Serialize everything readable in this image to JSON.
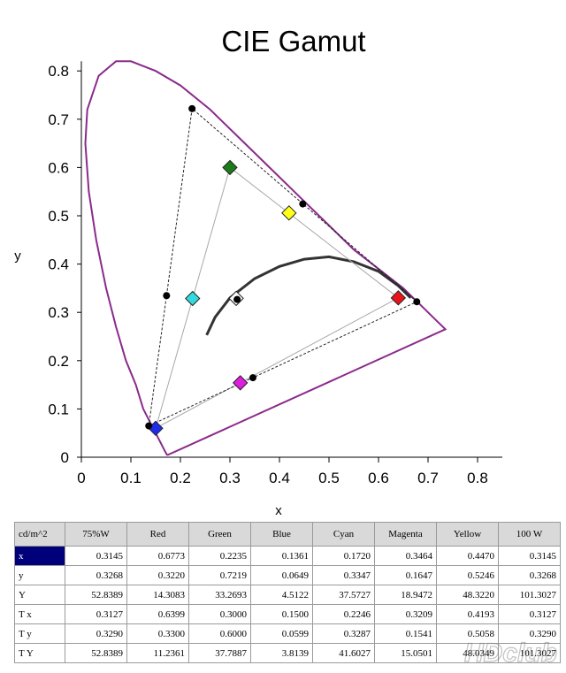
{
  "chart_data": {
    "type": "scatter",
    "title": "CIE Gamut",
    "xlabel": "x",
    "ylabel": "y",
    "xlim": [
      0,
      0.8
    ],
    "ylim": [
      0,
      0.8
    ],
    "x_ticks": [
      "0",
      "0.1",
      "0.2",
      "0.3",
      "0.4",
      "0.5",
      "0.6",
      "0.7",
      "0.8"
    ],
    "y_ticks": [
      "0",
      "0.1",
      "0.2",
      "0.3",
      "0.4",
      "0.5",
      "0.6",
      "0.7",
      "0.8"
    ],
    "grid": false,
    "spectral_locus": [
      [
        0.175,
        0.005
      ],
      [
        0.173,
        0.005
      ],
      [
        0.17,
        0.01
      ],
      [
        0.165,
        0.02
      ],
      [
        0.16,
        0.03
      ],
      [
        0.15,
        0.05
      ],
      [
        0.14,
        0.07
      ],
      [
        0.125,
        0.1
      ],
      [
        0.11,
        0.15
      ],
      [
        0.09,
        0.2
      ],
      [
        0.07,
        0.27
      ],
      [
        0.05,
        0.35
      ],
      [
        0.03,
        0.45
      ],
      [
        0.015,
        0.55
      ],
      [
        0.008,
        0.65
      ],
      [
        0.012,
        0.72
      ],
      [
        0.035,
        0.79
      ],
      [
        0.07,
        0.82
      ],
      [
        0.1,
        0.82
      ],
      [
        0.15,
        0.8
      ],
      [
        0.2,
        0.77
      ],
      [
        0.26,
        0.72
      ],
      [
        0.32,
        0.66
      ],
      [
        0.38,
        0.6
      ],
      [
        0.44,
        0.54
      ],
      [
        0.5,
        0.48
      ],
      [
        0.55,
        0.43
      ],
      [
        0.6,
        0.39
      ],
      [
        0.65,
        0.35
      ],
      [
        0.69,
        0.31
      ],
      [
        0.71,
        0.29
      ],
      [
        0.735,
        0.265
      ]
    ],
    "planckian_locus": [
      [
        0.253,
        0.253
      ],
      [
        0.27,
        0.29
      ],
      [
        0.3,
        0.33
      ],
      [
        0.35,
        0.37
      ],
      [
        0.4,
        0.395
      ],
      [
        0.45,
        0.41
      ],
      [
        0.5,
        0.415
      ],
      [
        0.55,
        0.405
      ],
      [
        0.6,
        0.385
      ],
      [
        0.64,
        0.355
      ],
      [
        0.665,
        0.33
      ]
    ],
    "target_gamut": [
      [
        0.64,
        0.33
      ],
      [
        0.3,
        0.6
      ],
      [
        0.15,
        0.06
      ]
    ],
    "measured_gamut": [
      [
        0.6773,
        0.322
      ],
      [
        0.2235,
        0.7219
      ],
      [
        0.1361,
        0.0649
      ]
    ],
    "measured_points": [
      {
        "x": 0.6773,
        "y": 0.322
      },
      {
        "x": 0.2235,
        "y": 0.7219
      },
      {
        "x": 0.1361,
        "y": 0.0649
      },
      {
        "x": 0.172,
        "y": 0.3347
      },
      {
        "x": 0.3464,
        "y": 0.1647
      },
      {
        "x": 0.447,
        "y": 0.5246
      },
      {
        "x": 0.3145,
        "y": 0.3268
      }
    ],
    "target_points": [
      {
        "x": 0.6399,
        "y": 0.33,
        "color": "#e8141c"
      },
      {
        "x": 0.3,
        "y": 0.6,
        "color": "#1a7d1a"
      },
      {
        "x": 0.15,
        "y": 0.0599,
        "color": "#1f2be8"
      },
      {
        "x": 0.2246,
        "y": 0.3287,
        "color": "#33dcdc"
      },
      {
        "x": 0.3209,
        "y": 0.1541,
        "color": "#e01ee0"
      },
      {
        "x": 0.4193,
        "y": 0.5058,
        "color": "#ffff1a"
      },
      {
        "x": 0.3127,
        "y": 0.329,
        "color": "#ffffff"
      }
    ],
    "colors": {
      "locus": "#8b2a8b",
      "planckian": "#333333",
      "measured_line": "#222222",
      "target_line": "#a8a8a8"
    }
  },
  "table": {
    "corner": "cd/m^2",
    "columns": [
      "75%W",
      "Red",
      "Green",
      "Blue",
      "Cyan",
      "Magenta",
      "Yellow",
      "100 W"
    ],
    "rows": [
      {
        "label": "x",
        "values": [
          "0.3145",
          "0.6773",
          "0.2235",
          "0.1361",
          "0.1720",
          "0.3464",
          "0.4470",
          "0.3145"
        ]
      },
      {
        "label": "y",
        "values": [
          "0.3268",
          "0.3220",
          "0.7219",
          "0.0649",
          "0.3347",
          "0.1647",
          "0.5246",
          "0.3268"
        ]
      },
      {
        "label": "Y",
        "values": [
          "52.8389",
          "14.3083",
          "33.2693",
          "4.5122",
          "37.5727",
          "18.9472",
          "48.3220",
          "101.3027"
        ]
      },
      {
        "label": "T x",
        "values": [
          "0.3127",
          "0.6399",
          "0.3000",
          "0.1500",
          "0.2246",
          "0.3209",
          "0.4193",
          "0.3127"
        ]
      },
      {
        "label": "T y",
        "values": [
          "0.3290",
          "0.3300",
          "0.6000",
          "0.0599",
          "0.3287",
          "0.1541",
          "0.5058",
          "0.3290"
        ]
      },
      {
        "label": "T Y",
        "values": [
          "52.8389",
          "11.2361",
          "37.7887",
          "3.8139",
          "41.6027",
          "15.0501",
          "48.0349",
          "101.3027"
        ]
      }
    ]
  },
  "watermark": "HDclub"
}
